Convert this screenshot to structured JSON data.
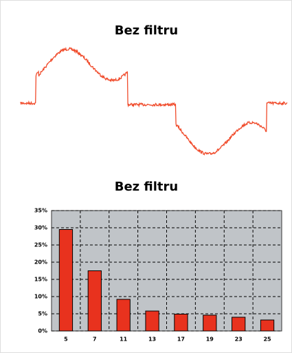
{
  "chart_data": [
    {
      "type": "waveform",
      "title": "Bez filtru"
    },
    {
      "type": "bar",
      "title": "Bez filtru",
      "categories": [
        "5",
        "7",
        "11",
        "13",
        "17",
        "19",
        "23",
        "25"
      ],
      "values": [
        29.5,
        17.5,
        9.2,
        5.8,
        4.9,
        4.6,
        4.0,
        3.2
      ],
      "color": "#e8321e",
      "ylim": [
        0,
        35
      ],
      "yticks": [
        {
          "value": 0,
          "label": "0%"
        },
        {
          "value": 5,
          "label": "5%"
        },
        {
          "value": 10,
          "label": "10%"
        },
        {
          "value": 15,
          "label": "15%"
        },
        {
          "value": 20,
          "label": "20%"
        },
        {
          "value": 25,
          "label": "25%"
        },
        {
          "value": 30,
          "label": "30%"
        },
        {
          "value": 35,
          "label": "35%"
        }
      ],
      "grid": true
    }
  ]
}
